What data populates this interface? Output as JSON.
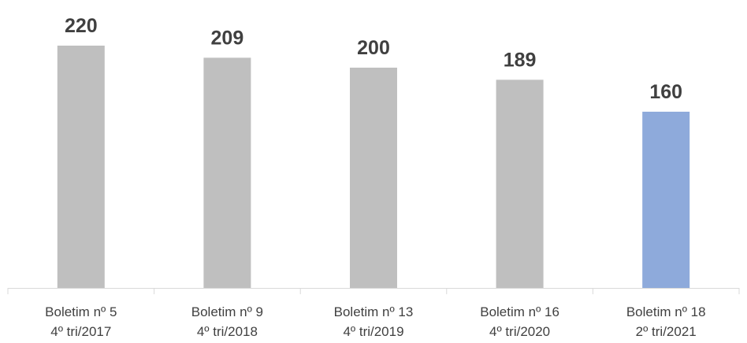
{
  "chart_data": {
    "type": "bar",
    "categories": [
      [
        "Boletim nº 5",
        "4º tri/2017"
      ],
      [
        "Boletim nº 9",
        "4º tri/2018"
      ],
      [
        "Boletim nº 13",
        "4º tri/2019"
      ],
      [
        "Boletim nº 16",
        "4º tri/2020"
      ],
      [
        "Boletim nº 18",
        "2º tri/2021"
      ]
    ],
    "values": [
      220,
      209,
      200,
      189,
      160
    ],
    "data_labels": [
      "220",
      "209",
      "200",
      "189",
      "160"
    ],
    "colors": [
      "#bfbfbf",
      "#bfbfbf",
      "#bfbfbf",
      "#bfbfbf",
      "#8eaadb"
    ],
    "axis_color": "#d9d9d9",
    "title": "",
    "xlabel": "",
    "ylabel": "",
    "ylim": [
      0,
      230
    ],
    "grid": false,
    "legend": "none"
  }
}
